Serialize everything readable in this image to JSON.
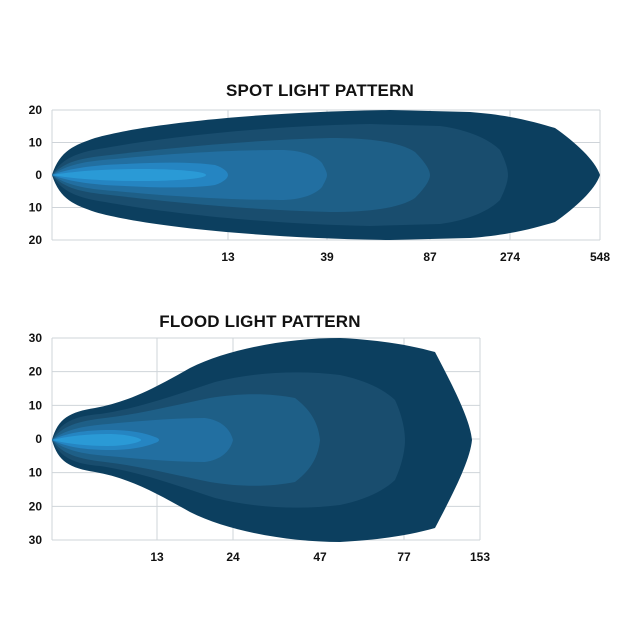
{
  "chart_data": [
    {
      "type": "area",
      "title": "SPOT LIGHT PATTERN",
      "x_ticks": [
        "13",
        "39",
        "87",
        "274",
        "548"
      ],
      "y_ticks": [
        "20",
        "10",
        "0",
        "10",
        "20"
      ],
      "ylim": [
        -20,
        20
      ],
      "grid": true,
      "colors": [
        "#0c3f5f",
        "#194d6e",
        "#1e5f87",
        "#226fa1",
        "#2585c2",
        "#2a9ad6"
      ]
    },
    {
      "type": "area",
      "title": "FLOOD LIGHT PATTERN",
      "x_ticks": [
        "13",
        "24",
        "47",
        "77",
        "153"
      ],
      "y_ticks": [
        "30",
        "20",
        "10",
        "0",
        "10",
        "20",
        "30"
      ],
      "ylim": [
        -30,
        30
      ],
      "grid": true,
      "colors": [
        "#0c3f5f",
        "#194d6e",
        "#1e5f87",
        "#226fa1",
        "#2585c2",
        "#2a9ad6"
      ]
    }
  ]
}
